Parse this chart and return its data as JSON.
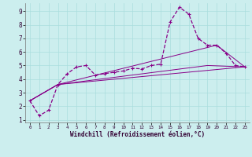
{
  "xlabel": "Windchill (Refroidissement éolien,°C)",
  "background_color": "#cceeee",
  "grid_color": "#aadddd",
  "line_color": "#880088",
  "xlim": [
    -0.5,
    23.5
  ],
  "ylim": [
    0.8,
    9.6
  ],
  "xticks": [
    0,
    1,
    2,
    3,
    4,
    5,
    6,
    7,
    8,
    9,
    10,
    11,
    12,
    13,
    14,
    15,
    16,
    17,
    18,
    19,
    20,
    21,
    22,
    23
  ],
  "yticks": [
    1,
    2,
    3,
    4,
    5,
    6,
    7,
    8,
    9
  ],
  "series_dashed": {
    "x": [
      0,
      1,
      2,
      3,
      4,
      5,
      6,
      7,
      8,
      9,
      10,
      11,
      12,
      13,
      14,
      15,
      16,
      17,
      18,
      19,
      20,
      21,
      22,
      23
    ],
    "y": [
      2.4,
      1.3,
      1.7,
      3.6,
      4.4,
      4.9,
      5.0,
      4.3,
      4.4,
      4.5,
      4.6,
      4.8,
      4.75,
      5.0,
      5.1,
      8.2,
      9.3,
      8.8,
      7.0,
      6.5,
      6.5,
      5.9,
      5.0,
      4.9
    ]
  },
  "series_line1": {
    "x": [
      0,
      3,
      23
    ],
    "y": [
      2.4,
      3.6,
      4.9
    ]
  },
  "series_line2": {
    "x": [
      0,
      3,
      19,
      23
    ],
    "y": [
      2.4,
      3.6,
      5.0,
      4.9
    ]
  },
  "series_line3": {
    "x": [
      0,
      3,
      20,
      23
    ],
    "y": [
      2.4,
      3.6,
      6.5,
      4.9
    ]
  }
}
